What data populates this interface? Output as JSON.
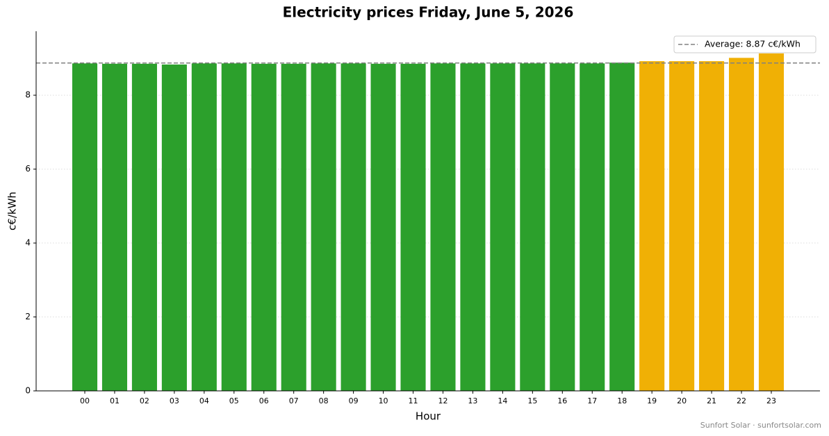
{
  "chart_data": {
    "type": "bar",
    "title": "Electricity prices Friday, June 5, 2026",
    "x_label": "Hour",
    "y_label": "c€/kWh",
    "categories": [
      "00",
      "01",
      "02",
      "03",
      "04",
      "05",
      "06",
      "07",
      "08",
      "09",
      "10",
      "11",
      "12",
      "13",
      "14",
      "15",
      "16",
      "17",
      "18",
      "19",
      "20",
      "21",
      "22",
      "23"
    ],
    "values": [
      8.86,
      8.85,
      8.85,
      8.83,
      8.86,
      8.86,
      8.85,
      8.85,
      8.86,
      8.86,
      8.85,
      8.85,
      8.86,
      8.86,
      8.86,
      8.86,
      8.86,
      8.86,
      8.88,
      8.92,
      8.92,
      8.92,
      9.01,
      9.13
    ],
    "colors": [
      "#2ca02c",
      "#2ca02c",
      "#2ca02c",
      "#2ca02c",
      "#2ca02c",
      "#2ca02c",
      "#2ca02c",
      "#2ca02c",
      "#2ca02c",
      "#2ca02c",
      "#2ca02c",
      "#2ca02c",
      "#2ca02c",
      "#2ca02c",
      "#2ca02c",
      "#2ca02c",
      "#2ca02c",
      "#2ca02c",
      "#2ca02c",
      "#f0b005",
      "#f0b005",
      "#f0b005",
      "#f0b005",
      "#f0b005"
    ],
    "average": 8.87,
    "average_label": "Average: 8.87 c€/kWh",
    "average_color": "#808080",
    "ylim": [
      0,
      9.73
    ],
    "yticks": [
      0,
      2,
      4,
      6,
      8
    ],
    "grid": true,
    "legend": "upper right",
    "footer": "Sunfort Solar · sunfortsolar.com"
  }
}
